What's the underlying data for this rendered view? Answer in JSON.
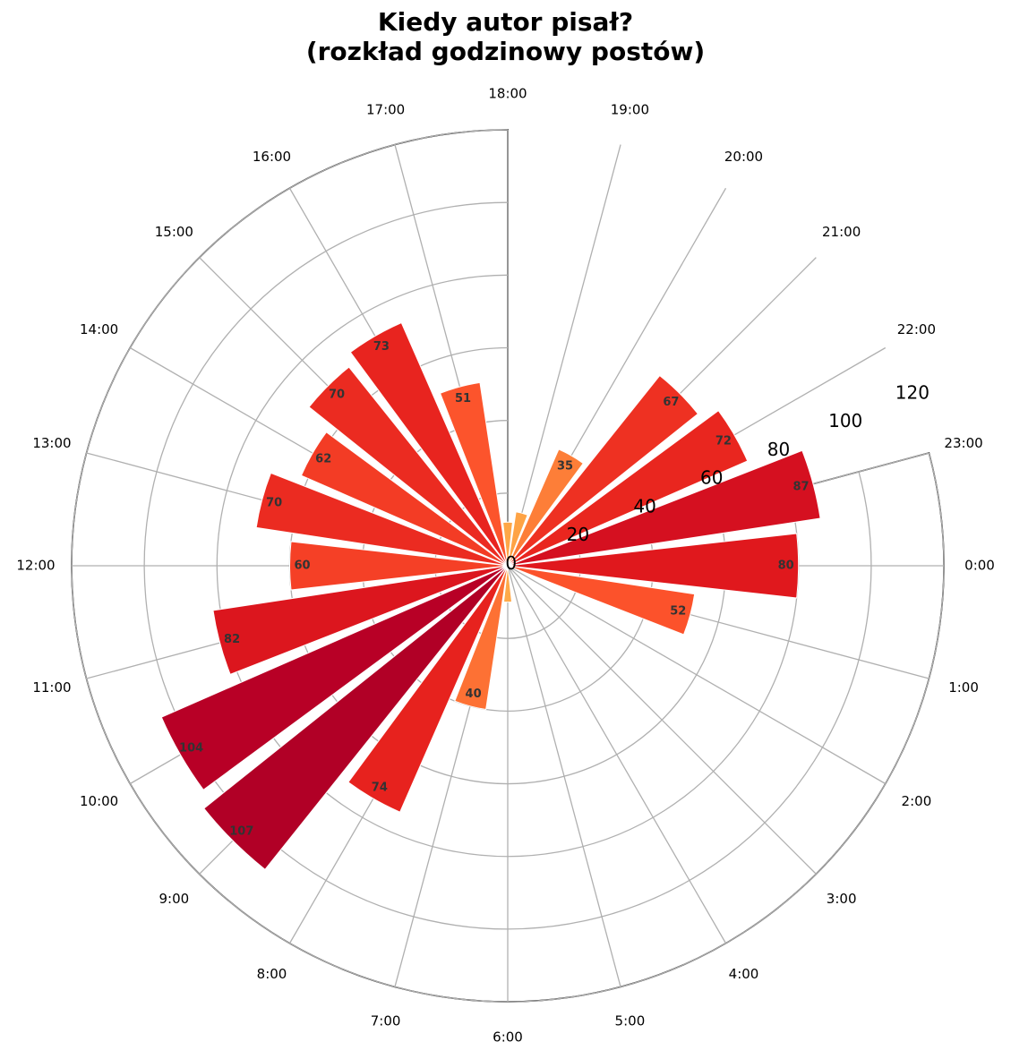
{
  "chart_data": {
    "type": "bar",
    "subtype": "polar",
    "title_lines": [
      "Kiedy autor pisał?",
      "(rozkład godzinowy postów)"
    ],
    "categories": [
      "0:00",
      "1:00",
      "2:00",
      "3:00",
      "4:00",
      "5:00",
      "6:00",
      "7:00",
      "8:00",
      "9:00",
      "10:00",
      "11:00",
      "12:00",
      "13:00",
      "14:00",
      "15:00",
      "16:00",
      "17:00",
      "18:00",
      "19:00",
      "20:00",
      "21:00",
      "22:00",
      "23:00"
    ],
    "values": [
      80,
      52,
      0,
      0,
      0,
      0,
      10,
      40,
      74,
      107,
      104,
      82,
      60,
      70,
      62,
      70,
      73,
      51,
      12,
      15,
      35,
      67,
      72,
      87
    ],
    "data_labels": {
      "0": "80",
      "1": "52",
      "7": "40",
      "8": "74",
      "9": "107",
      "10": "104",
      "11": "82",
      "12": "60",
      "13": "70",
      "14": "62",
      "15": "70",
      "16": "73",
      "17": "51",
      "20": "35",
      "21": "67",
      "22": "72",
      "23": "87"
    },
    "rlim": [
      0,
      120
    ],
    "radial_ticks": [
      "0",
      "20",
      "40",
      "60",
      "80",
      "100",
      "120"
    ],
    "direction": "clockwise",
    "zero_hour_position": "right",
    "visible_sector": "6:00 to 23:00",
    "colormap": "YlOrRd",
    "grid": true
  }
}
